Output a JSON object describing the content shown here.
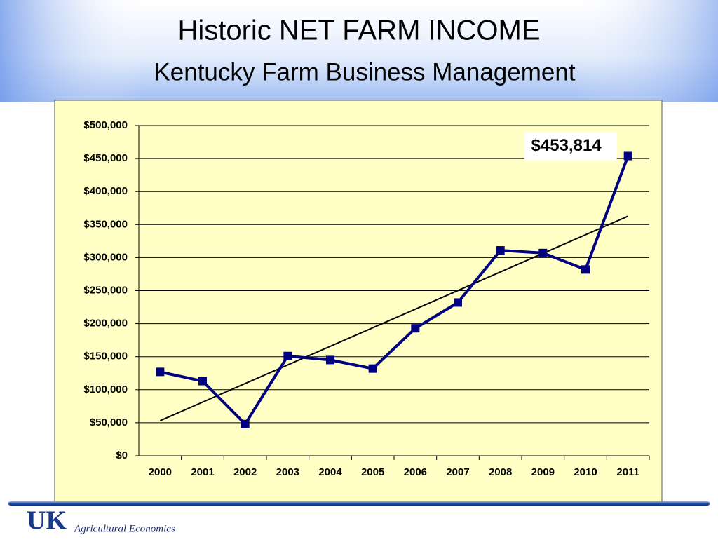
{
  "chart_data": {
    "type": "line",
    "title": "Historic NET FARM INCOME",
    "subtitle": "Kentucky Farm Business Management",
    "categories": [
      "2000",
      "2001",
      "2002",
      "2003",
      "2004",
      "2005",
      "2006",
      "2007",
      "2008",
      "2009",
      "2010",
      "2011"
    ],
    "values": [
      127000,
      113000,
      48000,
      151000,
      145000,
      132000,
      193000,
      232000,
      311000,
      307000,
      282000,
      453814
    ],
    "value_labels": [
      null,
      null,
      null,
      null,
      null,
      null,
      null,
      null,
      null,
      null,
      null,
      "$453,814"
    ],
    "color": "#000080",
    "trendline": true,
    "ylim": [
      0,
      500000
    ],
    "yticks": [
      {
        "value": 0,
        "label": "$0"
      },
      {
        "value": 50000,
        "label": "$50,000"
      },
      {
        "value": 100000,
        "label": "$100,000"
      },
      {
        "value": 150000,
        "label": "$150,000"
      },
      {
        "value": 200000,
        "label": "$200,000"
      },
      {
        "value": 250000,
        "label": "$250,000"
      },
      {
        "value": 300000,
        "label": "$300,000"
      },
      {
        "value": 350000,
        "label": "$350,000"
      },
      {
        "value": 400000,
        "label": "$400,000"
      },
      {
        "value": 450000,
        "label": "$450,000"
      },
      {
        "value": 500000,
        "label": "$500,000"
      }
    ],
    "grid": true
  },
  "footer": {
    "logo": "UK",
    "text": "Agricultural Economics"
  }
}
